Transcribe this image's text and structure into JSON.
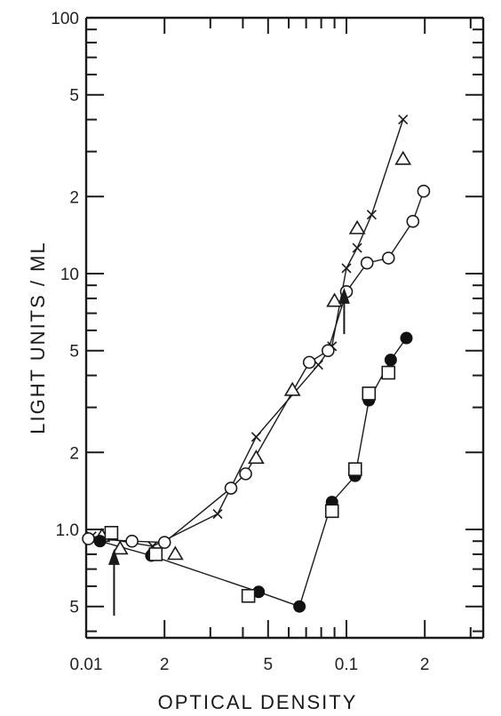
{
  "chart_data": {
    "type": "scatter",
    "title": "",
    "xlabel": "OPTICAL DENSITY",
    "ylabel": "LIGHT UNITS / ML",
    "xscale": "log",
    "yscale": "log",
    "xlim": [
      0.01,
      0.3
    ],
    "ylim": [
      0.35,
      100
    ],
    "grid": false,
    "x_major_ticks": [
      {
        "value": 0.01,
        "label": "0.01"
      },
      {
        "value": 0.02,
        "label": "2"
      },
      {
        "value": 0.05,
        "label": "5"
      },
      {
        "value": 0.1,
        "label": "0.1"
      },
      {
        "value": 0.2,
        "label": "2"
      }
    ],
    "x_minor_ticks": [
      0.03,
      0.04,
      0.06,
      0.07,
      0.08,
      0.09,
      0.3
    ],
    "y_major_ticks": [
      {
        "value": 100,
        "label": "100"
      },
      {
        "value": 50,
        "label": "5"
      },
      {
        "value": 20,
        "label": "2"
      },
      {
        "value": 10,
        "label": "10"
      },
      {
        "value": 5,
        "label": "5"
      },
      {
        "value": 2,
        "label": "2"
      },
      {
        "value": 1,
        "label": "1.0"
      },
      {
        "value": 0.5,
        "label": "5"
      }
    ],
    "y_minor_ticks": [
      90,
      80,
      70,
      60,
      40,
      30,
      9,
      8,
      7,
      6,
      4,
      3,
      0.9,
      0.8,
      0.7,
      0.6,
      0.4
    ],
    "series": [
      {
        "marker": "x",
        "connected": true,
        "points": [
          [
            0.0105,
            0.94
          ],
          [
            0.018,
            0.86
          ],
          [
            0.032,
            1.15
          ],
          [
            0.045,
            2.3
          ],
          [
            0.078,
            4.4
          ],
          [
            0.088,
            5.2
          ],
          [
            0.1,
            10.5
          ],
          [
            0.11,
            12.6
          ],
          [
            0.125,
            17
          ],
          [
            0.165,
            40
          ]
        ]
      },
      {
        "marker": "triangle",
        "connected": false,
        "points": [
          [
            0.0115,
            0.94
          ],
          [
            0.0135,
            0.84
          ],
          [
            0.022,
            0.8
          ],
          [
            0.045,
            1.9
          ],
          [
            0.062,
            3.5
          ],
          [
            0.09,
            7.8
          ],
          [
            0.11,
            15
          ],
          [
            0.165,
            28
          ]
        ]
      },
      {
        "marker": "circle-open",
        "connected": true,
        "points": [
          [
            0.0102,
            0.92
          ],
          [
            0.015,
            0.9
          ],
          [
            0.02,
            0.89
          ],
          [
            0.036,
            1.45
          ],
          [
            0.041,
            1.65
          ],
          [
            0.072,
            4.5
          ],
          [
            0.085,
            5
          ],
          [
            0.1,
            8.5
          ],
          [
            0.12,
            11
          ],
          [
            0.145,
            11.5
          ],
          [
            0.18,
            16
          ],
          [
            0.198,
            21
          ]
        ]
      },
      {
        "marker": "circle-filled",
        "connected": true,
        "points": [
          [
            0.0113,
            0.9
          ],
          [
            0.0178,
            0.79
          ],
          [
            0.046,
            0.57
          ],
          [
            0.066,
            0.5
          ],
          [
            0.088,
            1.28
          ],
          [
            0.108,
            1.62
          ],
          [
            0.122,
            3.2
          ],
          [
            0.148,
            4.6
          ],
          [
            0.17,
            5.6
          ]
        ]
      },
      {
        "marker": "square-open",
        "connected": false,
        "points": [
          [
            0.0125,
            0.97
          ],
          [
            0.0185,
            0.8
          ],
          [
            0.042,
            0.55
          ],
          [
            0.088,
            1.18
          ],
          [
            0.108,
            1.72
          ],
          [
            0.122,
            3.4
          ],
          [
            0.145,
            4.1
          ]
        ]
      }
    ],
    "annotations": [
      {
        "type": "arrow-up",
        "x": 0.0128,
        "y_from": 0.46,
        "y_to": 0.82
      },
      {
        "type": "arrow-up",
        "x": 0.098,
        "y_from": 5.8,
        "y_to": 8.6
      }
    ]
  },
  "colors": {
    "ink": "#1a1a1a",
    "background": "#ffffff"
  }
}
